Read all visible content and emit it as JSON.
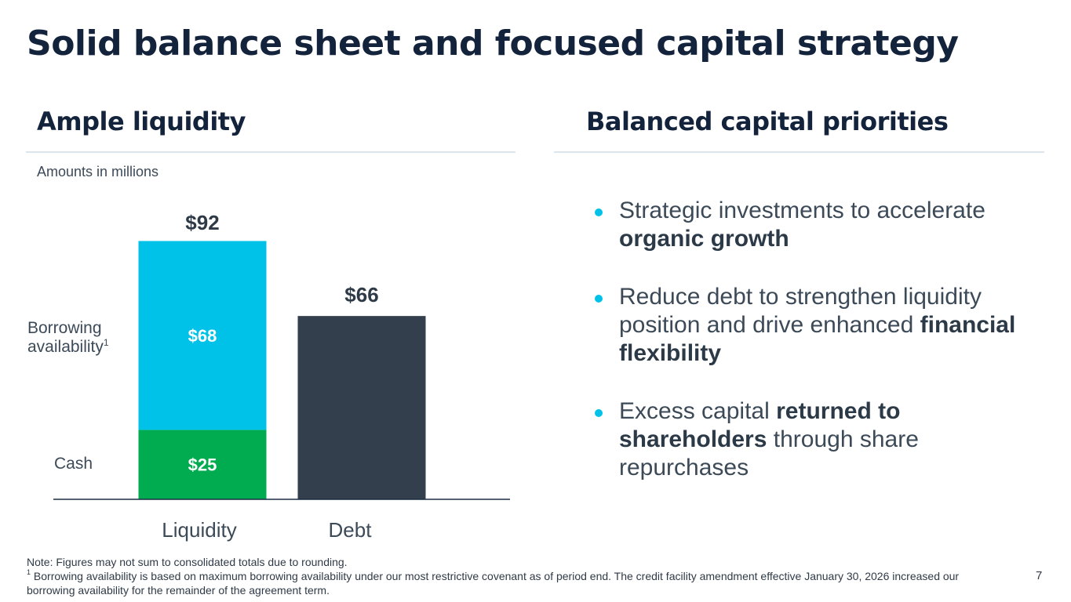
{
  "slide": {
    "title": "Solid balance sheet and focused capital strategy",
    "page_number": "7"
  },
  "left_panel": {
    "heading": "Ample liquidity",
    "units_note": "Amounts in millions",
    "row_labels": {
      "borrowing_line1": "Borrowing",
      "borrowing_line2": "availability",
      "borrowing_sup": "1",
      "cash": "Cash"
    }
  },
  "right_panel": {
    "heading": "Balanced capital priorities",
    "bullets": [
      {
        "pre": "Strategic investments to accelerate ",
        "bold": "organic growth",
        "post": ""
      },
      {
        "pre": "Reduce debt to strengthen liquidity position and drive enhanced ",
        "bold": "financial flexibility",
        "post": ""
      },
      {
        "pre": "Excess capital ",
        "bold": "returned to shareholders",
        "post": " through share repurchases"
      }
    ]
  },
  "footnotes": {
    "note": "Note: Figures may not sum to consolidated totals due to rounding.",
    "footnote_marker": "1",
    "footnote": " Borrowing availability is based on maximum borrowing availability under our most restrictive covenant as of period end. The credit facility amendment effective January 30, 2026 increased our borrowing availability for the remainder of the agreement term."
  },
  "colors": {
    "title": "#14233c",
    "cash": "#00ac4f",
    "borrowing": "#00c2e8",
    "debt": "#333f4c",
    "bullet": "#00c2e8"
  },
  "chart_data": {
    "type": "bar",
    "stacked": true,
    "categories": [
      "Liquidity",
      "Debt"
    ],
    "series": [
      {
        "key": "cash",
        "values": [
          25,
          null
        ],
        "labels": [
          "$25",
          ""
        ],
        "color": "#00ac4f"
      },
      {
        "key": "borrowing",
        "values": [
          68,
          null
        ],
        "labels": [
          "$68",
          ""
        ],
        "color": "#00c2e8"
      },
      {
        "key": "debt",
        "values": [
          null,
          66
        ],
        "labels": [
          "",
          ""
        ],
        "color": "#333f4c"
      }
    ],
    "totals": [
      92,
      66
    ],
    "total_labels": [
      "$92",
      "$66"
    ],
    "ylim": [
      0,
      92
    ],
    "grid": false,
    "legend": "none"
  }
}
